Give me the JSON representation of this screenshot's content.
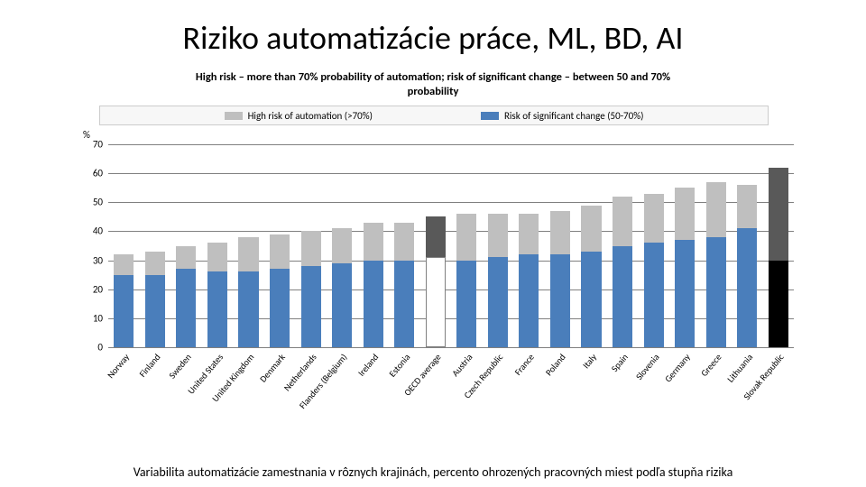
{
  "title": "Riziko automatizácie práce, ML, BD, AI",
  "subtitle_line1": "High risk – more than 70% probability of automation; risk of significant change – between 50 and 70%",
  "subtitle_line2": "probability",
  "y_unit": "%",
  "legend": {
    "high_risk": {
      "label": "High risk of automation (>70%)",
      "color": "#bfbfbf"
    },
    "sig_change": {
      "label": "Risk of significant change (50-70%)",
      "color": "#4a7ebb"
    }
  },
  "chart": {
    "type": "stacked-bar",
    "ylim": [
      0,
      70
    ],
    "ytick_step": 10,
    "yticks": [
      0,
      10,
      20,
      30,
      40,
      50,
      60,
      70
    ],
    "grid_color": "#808080",
    "background_color": "#ffffff",
    "colors": {
      "blue": "#4a7ebb",
      "grey": "#bfbfbf",
      "highlight_blue": "#000000",
      "highlight_grey": "#595959",
      "white_fill": "#ffffff",
      "white_border": "#808080"
    },
    "categories": [
      {
        "label": "Norway",
        "blue": 25,
        "grey": 7,
        "style": "normal"
      },
      {
        "label": "Finland",
        "blue": 25,
        "grey": 8,
        "style": "normal"
      },
      {
        "label": "Sweden",
        "blue": 27,
        "grey": 8,
        "style": "normal"
      },
      {
        "label": "United States",
        "blue": 26,
        "grey": 10,
        "style": "normal"
      },
      {
        "label": "United Kingdom",
        "blue": 26,
        "grey": 12,
        "style": "normal"
      },
      {
        "label": "Denmark",
        "blue": 27,
        "grey": 12,
        "style": "normal"
      },
      {
        "label": "Netherlands",
        "blue": 28,
        "grey": 12,
        "style": "normal"
      },
      {
        "label": "Flanders (Belgium)",
        "blue": 29,
        "grey": 12,
        "style": "normal"
      },
      {
        "label": "Ireland",
        "blue": 30,
        "grey": 13,
        "style": "normal"
      },
      {
        "label": "Estonia",
        "blue": 30,
        "grey": 13,
        "style": "normal"
      },
      {
        "label": "OECD average",
        "blue": 31,
        "grey": 14,
        "style": "oecd"
      },
      {
        "label": "Austria",
        "blue": 30,
        "grey": 16,
        "style": "normal"
      },
      {
        "label": "Czech Republic",
        "blue": 31,
        "grey": 15,
        "style": "normal"
      },
      {
        "label": "France",
        "blue": 32,
        "grey": 14,
        "style": "normal"
      },
      {
        "label": "Poland",
        "blue": 32,
        "grey": 15,
        "style": "normal"
      },
      {
        "label": "Italy",
        "blue": 33,
        "grey": 16,
        "style": "normal"
      },
      {
        "label": "Spain",
        "blue": 35,
        "grey": 17,
        "style": "normal"
      },
      {
        "label": "Slovenia",
        "blue": 36,
        "grey": 17,
        "style": "normal"
      },
      {
        "label": "Germany",
        "blue": 37,
        "grey": 18,
        "style": "normal"
      },
      {
        "label": "Greece",
        "blue": 38,
        "grey": 19,
        "style": "normal"
      },
      {
        "label": "Lithuania",
        "blue": 41,
        "grey": 15,
        "style": "normal"
      },
      {
        "label": "Slovak Republic",
        "blue": 30,
        "grey": 32,
        "style": "highlight"
      }
    ]
  },
  "caption": "Variabilita automatizácie zamestnania v rôznych krajinách, percento ohrozených pracovných miest podľa stupňa rizika"
}
